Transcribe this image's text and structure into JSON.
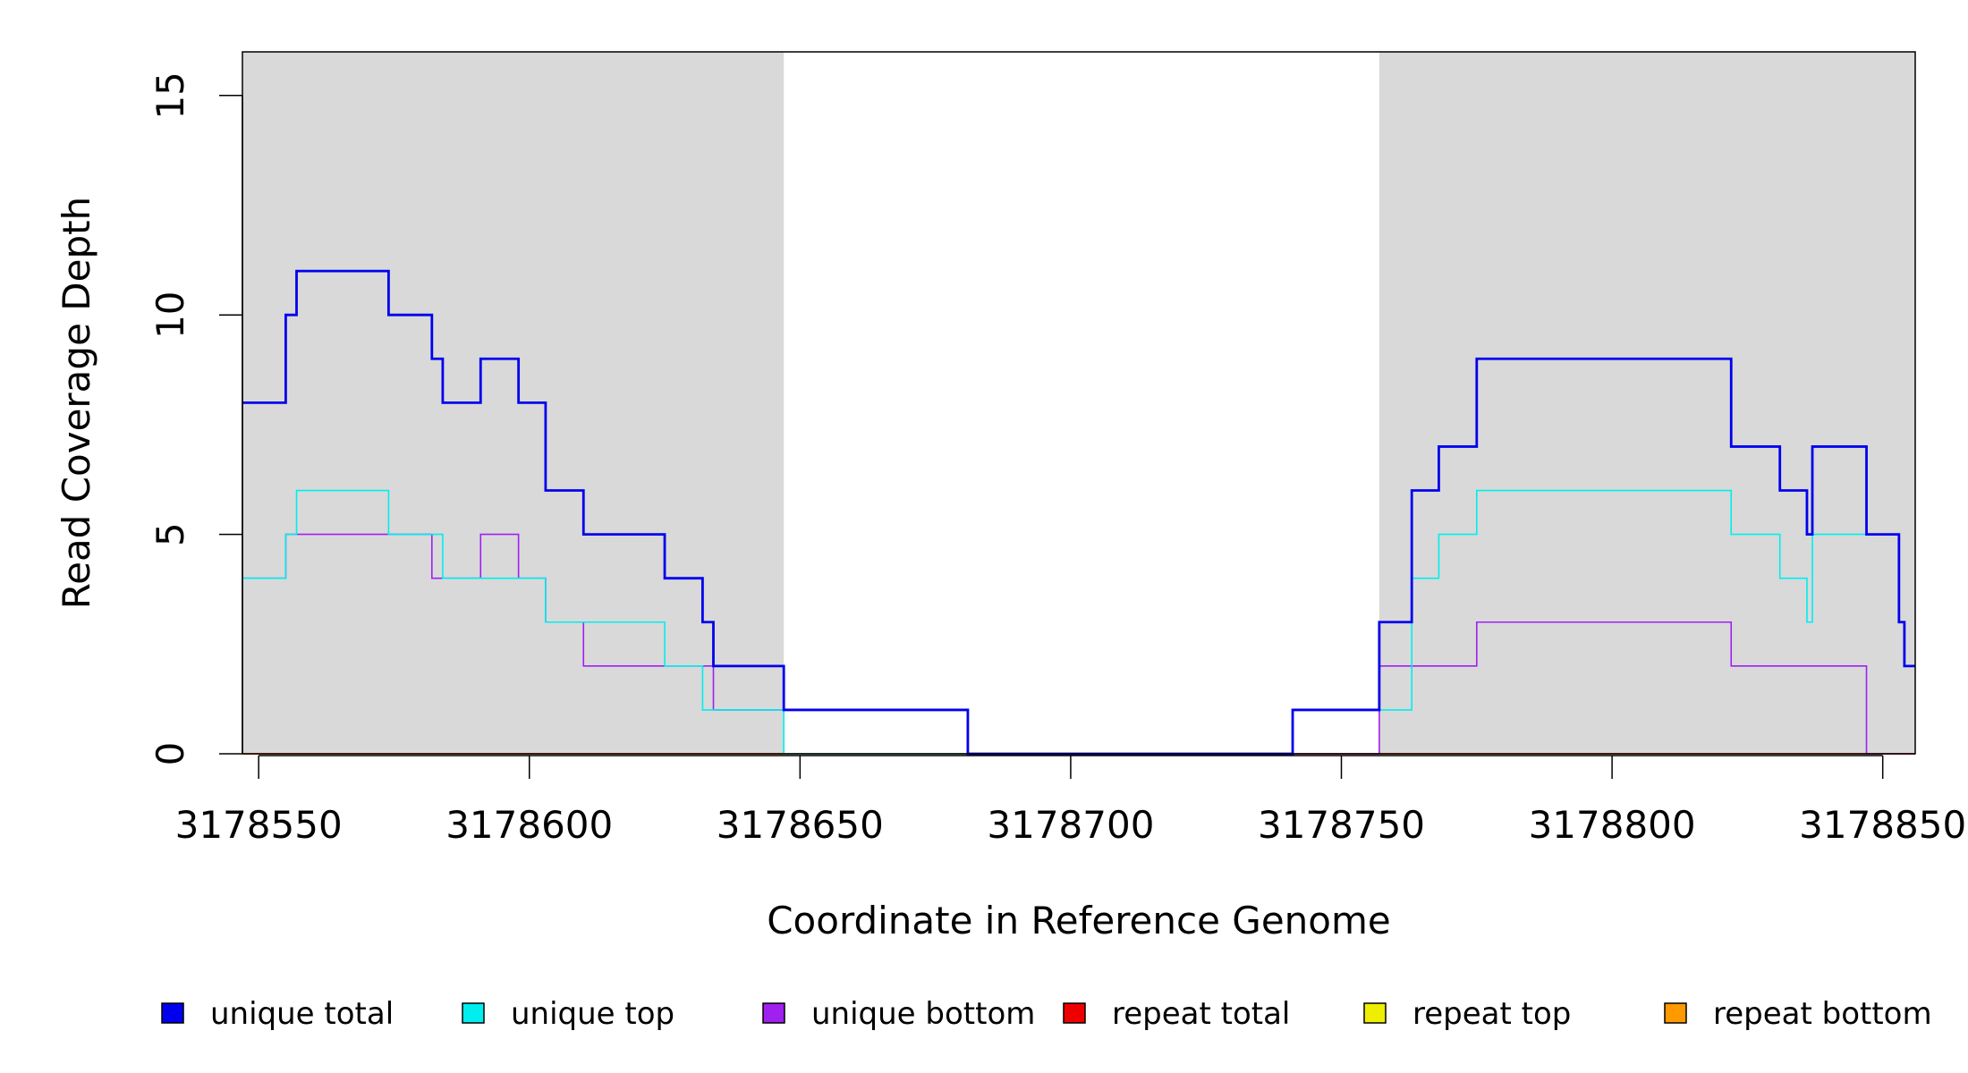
{
  "chart_data": {
    "type": "line",
    "title": "",
    "xlabel": "Coordinate in Reference Genome",
    "ylabel": "Read Coverage Depth",
    "xlim": [
      3178547,
      3178856
    ],
    "ylim": [
      0,
      16
    ],
    "xticks": [
      3178550,
      3178600,
      3178650,
      3178700,
      3178750,
      3178800,
      3178850
    ],
    "xtick_labels": [
      "3178550",
      "3178600",
      "3178650",
      "3178700",
      "3178750",
      "3178800",
      "3178850"
    ],
    "yticks": [
      0,
      5,
      10,
      15
    ],
    "ytick_labels": [
      "0",
      "5",
      "10",
      "15"
    ],
    "shaded_regions": [
      [
        3178547,
        3178647
      ],
      [
        3178757,
        3178856
      ]
    ],
    "grid": false,
    "legend_position": "bottom",
    "series": [
      {
        "name": "unique total",
        "color": "#0000ee",
        "x": [
          3178547,
          3178555,
          3178557,
          3178574,
          3178582,
          3178584,
          3178591,
          3178598,
          3178603,
          3178610,
          3178625,
          3178632,
          3178634,
          3178647,
          3178681,
          3178741,
          3178757,
          3178763,
          3178768,
          3178775,
          3178822,
          3178831,
          3178836,
          3178837,
          3178847,
          3178853,
          3178854,
          3178856
        ],
        "y": [
          8,
          10,
          11,
          10,
          9,
          8,
          9,
          8,
          6,
          5,
          4,
          3,
          2,
          1,
          0,
          1,
          3,
          6,
          7,
          9,
          7,
          6,
          5,
          7,
          5,
          3,
          2,
          2
        ]
      },
      {
        "name": "unique top",
        "color": "#00eeee",
        "x": [
          3178547,
          3178555,
          3178557,
          3178574,
          3178584,
          3178591,
          3178598,
          3178603,
          3178610,
          3178625,
          3178632,
          3178634,
          3178647,
          3178681,
          3178741,
          3178757,
          3178763,
          3178768,
          3178775,
          3178822,
          3178831,
          3178836,
          3178837,
          3178847,
          3178853,
          3178854,
          3178856
        ],
        "y": [
          4,
          5,
          6,
          5,
          4,
          4,
          4,
          3,
          3,
          2,
          1,
          1,
          0,
          0,
          1,
          1,
          4,
          5,
          6,
          5,
          4,
          3,
          5,
          5,
          3,
          2,
          2
        ]
      },
      {
        "name": "unique bottom",
        "color": "#a020f0",
        "x": [
          3178547,
          3178555,
          3178582,
          3178591,
          3178598,
          3178603,
          3178610,
          3178634,
          3178647,
          3178681,
          3178757,
          3178775,
          3178822,
          3178847,
          3178856
        ],
        "y": [
          4,
          5,
          4,
          5,
          4,
          3,
          2,
          1,
          1,
          0,
          2,
          3,
          2,
          0,
          0
        ]
      },
      {
        "name": "repeat total",
        "color": "#ee0000",
        "x": [
          3178547,
          3178856
        ],
        "y": [
          0,
          0
        ]
      },
      {
        "name": "repeat top",
        "color": "#eeee00",
        "x": [
          3178547,
          3178856
        ],
        "y": [
          0,
          0
        ]
      },
      {
        "name": "repeat bottom",
        "color": "#ff9900",
        "x": [
          3178547,
          3178856
        ],
        "y": [
          0,
          0
        ]
      }
    ]
  }
}
